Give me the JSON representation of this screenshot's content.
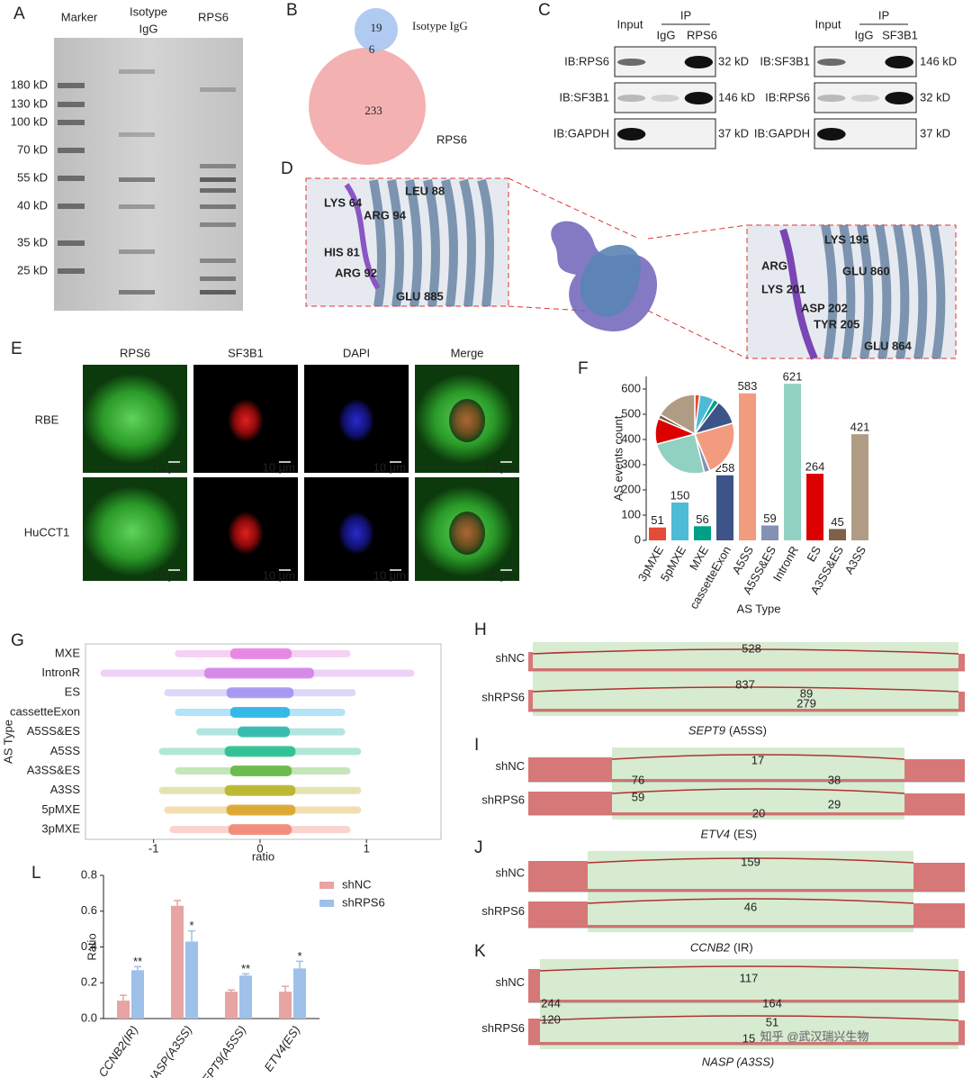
{
  "panel_labels": [
    "A",
    "B",
    "C",
    "D",
    "E",
    "F",
    "G",
    "H",
    "I",
    "J",
    "K",
    "L"
  ],
  "gel": {
    "lanes": [
      [
        "Marker"
      ],
      [
        "Isotype",
        "IgG"
      ],
      [
        "RPS6"
      ]
    ],
    "markers": [
      "180 kD",
      "130 kD",
      "100 kD",
      "70 kD",
      "55 kD",
      "40 kD",
      "35 kD",
      "25 kD"
    ]
  },
  "venn": {
    "sets": [
      {
        "name": "Isotype IgG",
        "only": 19
      },
      {
        "name": "RPS6",
        "only": 233
      }
    ],
    "overlap": 6
  },
  "western": [
    {
      "input": "Input",
      "ip": "IP",
      "lanes": [
        "IgG",
        "RPS6"
      ],
      "rows": [
        {
          "label": "IB:RPS6",
          "size": "32 kD"
        },
        {
          "label": "IB:SF3B1",
          "size": "146 kD"
        },
        {
          "label": "IB:GAPDH",
          "size": "37 kD"
        }
      ]
    },
    {
      "input": "Input",
      "ip": "IP",
      "lanes": [
        "IgG",
        "SF3B1"
      ],
      "rows": [
        {
          "label": "IB:SF3B1",
          "size": "146 kD"
        },
        {
          "label": "IB:RPS6",
          "size": "32 kD"
        },
        {
          "label": "IB:GAPDH",
          "size": "37 kD"
        }
      ]
    }
  ],
  "structure": {
    "left_residues": [
      "LYS 64",
      "LEU 88",
      "ARG 94",
      "HIS 81",
      "ARG 92",
      "GLU 885"
    ],
    "right_residues": [
      "LYS 195",
      "ARG",
      "GLU 860",
      "LYS 201",
      "ASP 202",
      "TYR 205",
      "GLU 864"
    ]
  },
  "microscopy": {
    "columns": [
      "RPS6",
      "SF3B1",
      "DAPI",
      "Merge"
    ],
    "rows": [
      "RBE",
      "HuCCT1"
    ],
    "scale_bar": "10 μm"
  },
  "sashimi": [
    {
      "caption": [
        "SEPT9",
        "(A5SS)"
      ],
      "tracks": [
        {
          "name": "shNC",
          "junctions": [
            528,
            89
          ]
        },
        {
          "name": "shRPS6",
          "junctions": [
            837,
            279
          ]
        }
      ]
    },
    {
      "caption": [
        "ETV4",
        "(ES)"
      ],
      "tracks": [
        {
          "name": "shNC",
          "junctions": [
            17,
            76,
            38
          ]
        },
        {
          "name": "shRPS6",
          "junctions": [
            59,
            20,
            29
          ]
        }
      ]
    },
    {
      "caption": [
        "CCNB2",
        "(IR)"
      ],
      "tracks": [
        {
          "name": "shNC",
          "junctions": [
            159
          ]
        },
        {
          "name": "shRPS6",
          "junctions": [
            46
          ]
        }
      ]
    },
    {
      "caption": [
        "NASP (A3SS)"
      ],
      "tracks": [
        {
          "name": "shNC",
          "junctions": [
            117,
            244,
            164
          ]
        },
        {
          "name": "shRPS6",
          "junctions": [
            120,
            51,
            15
          ]
        }
      ]
    }
  ],
  "watermark": "知乎 @武汉瑞兴生物",
  "chart_data": [
    {
      "type": "bar",
      "ylabel": "AS events count",
      "xlabel": "AS Type",
      "categories": [
        "3pMXE",
        "5pMXE",
        "MXE",
        "cassetteExon",
        "A5SS",
        "A5SS&ES",
        "IntronR",
        "ES",
        "A3SS&ES",
        "A3SS"
      ],
      "values": [
        51,
        150,
        56,
        258,
        583,
        59,
        621,
        264,
        45,
        421
      ],
      "colors": [
        "#e64b35",
        "#4dbbd5",
        "#00a087",
        "#3c5488",
        "#f39b7f",
        "#8491b4",
        "#91d1c2",
        "#dc0000",
        "#7e6148",
        "#b09c85"
      ],
      "ylim": [
        0,
        650
      ],
      "yticks": [
        0,
        100,
        200,
        300,
        400,
        500,
        600
      ],
      "inset_pie": true
    },
    {
      "type": "strip",
      "ylabel": "AS Type",
      "xlabel": "ratio",
      "categories": [
        "MXE",
        "IntronR",
        "ES",
        "cassetteExon",
        "A5SS&ES",
        "A5SS",
        "A3SS&ES",
        "A3SS",
        "5pMXE",
        "3pMXE"
      ],
      "ranges": [
        [
          -0.8,
          0.85
        ],
        [
          -1.5,
          1.45
        ],
        [
          -0.9,
          0.9
        ],
        [
          -0.8,
          0.8
        ],
        [
          -0.6,
          0.8
        ],
        [
          -0.95,
          0.95
        ],
        [
          -0.8,
          0.85
        ],
        [
          -0.95,
          0.95
        ],
        [
          -0.9,
          0.95
        ],
        [
          -0.85,
          0.85
        ]
      ],
      "colors": [
        "#e57be0",
        "#d27ce8",
        "#9c8ef0",
        "#1cb1e6",
        "#22b5a6",
        "#1dbb8a",
        "#5ab43a",
        "#b5b01c",
        "#d9a020",
        "#f08070"
      ],
      "xlim": [
        -1.64,
        1.7
      ],
      "xticks": [
        -1,
        0,
        1
      ]
    },
    {
      "type": "grouped_bar",
      "ylabel": "Ratio",
      "categories": [
        "CCNB2(IR)",
        "NASP(A3SS)",
        "SEPT9(A5SS)",
        "ETV4(ES)"
      ],
      "series": [
        {
          "name": "shNC",
          "color": "#e8a3a3",
          "values": [
            0.1,
            0.63,
            0.15,
            0.15
          ],
          "errors": [
            0.03,
            0.03,
            0.01,
            0.03
          ]
        },
        {
          "name": "shRPS6",
          "color": "#9fc0e8",
          "values": [
            0.27,
            0.43,
            0.24,
            0.28
          ],
          "errors": [
            0.02,
            0.06,
            0.01,
            0.04
          ],
          "significance": [
            "**",
            "*",
            "**",
            "*"
          ]
        }
      ],
      "ylim": [
        0,
        0.8
      ],
      "yticks": [
        {
          "value": 0,
          "label": "0.0"
        },
        0.2,
        0.4,
        0.6,
        0.8
      ]
    }
  ]
}
